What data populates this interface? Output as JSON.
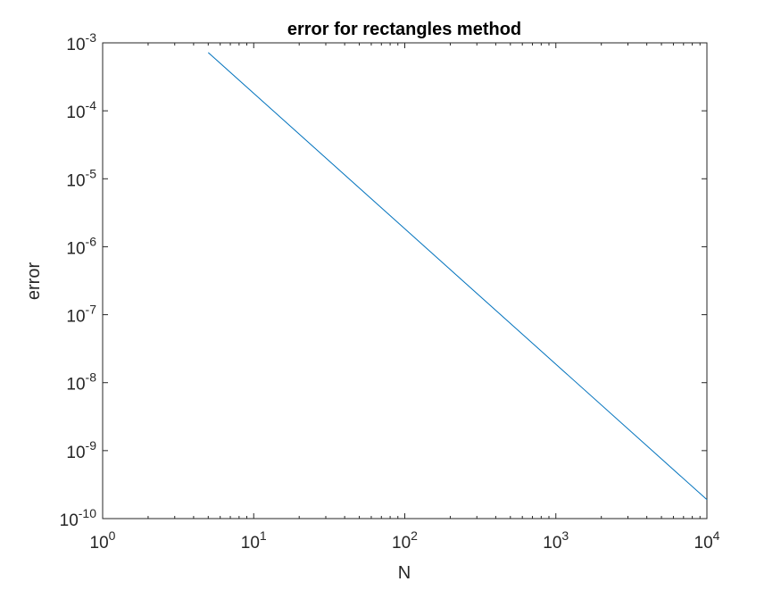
{
  "chart_data": {
    "type": "line",
    "title": "error for rectangles method",
    "xlabel": "N",
    "ylabel": "error",
    "xscale": "log",
    "yscale": "log",
    "xlim": [
      1,
      10000
    ],
    "ylim": [
      1e-10,
      0.001
    ],
    "grid": false,
    "legend": "none",
    "x_ticks": [
      {
        "value": 1,
        "base": "10",
        "exp": "0"
      },
      {
        "value": 10,
        "base": "10",
        "exp": "1"
      },
      {
        "value": 100,
        "base": "10",
        "exp": "2"
      },
      {
        "value": 1000,
        "base": "10",
        "exp": "3"
      },
      {
        "value": 10000,
        "base": "10",
        "exp": "4"
      }
    ],
    "y_ticks": [
      {
        "value": 0.001,
        "base": "10",
        "exp": "-3"
      },
      {
        "value": 0.0001,
        "base": "10",
        "exp": "-4"
      },
      {
        "value": 1e-05,
        "base": "10",
        "exp": "-5"
      },
      {
        "value": 1e-06,
        "base": "10",
        "exp": "-6"
      },
      {
        "value": 1e-07,
        "base": "10",
        "exp": "-7"
      },
      {
        "value": 1e-08,
        "base": "10",
        "exp": "-8"
      },
      {
        "value": 1e-09,
        "base": "10",
        "exp": "-9"
      },
      {
        "value": 1e-10,
        "base": "10",
        "exp": "-10"
      }
    ],
    "series": [
      {
        "color": "#0072bd",
        "x": [
          5,
          10000
        ],
        "y": [
          0.00072,
          1.9e-10
        ]
      }
    ]
  },
  "colors": {
    "line": "#0072bd",
    "axes": "#262626",
    "background": "#ffffff"
  }
}
